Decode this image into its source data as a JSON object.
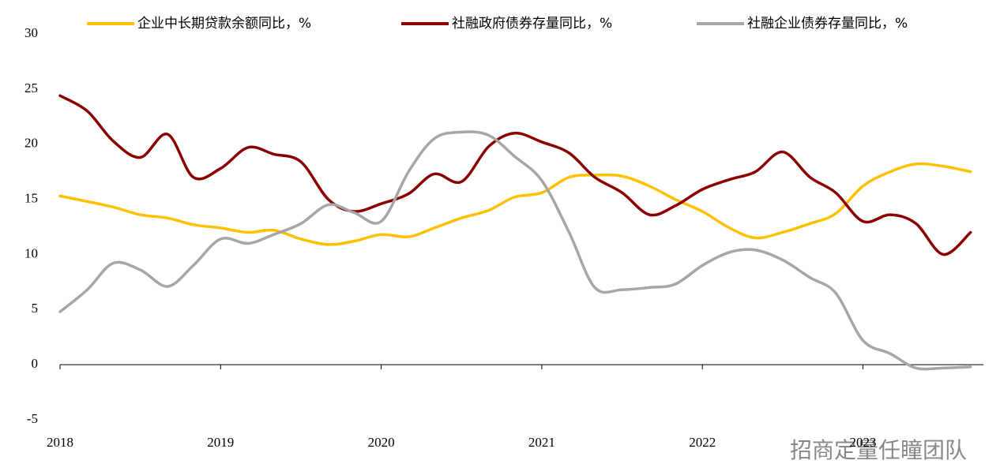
{
  "chart_data": {
    "type": "line",
    "x": [
      2018,
      2018.17,
      2018.33,
      2018.5,
      2018.67,
      2018.83,
      2019,
      2019.17,
      2019.33,
      2019.5,
      2019.67,
      2019.83,
      2020,
      2020.17,
      2020.33,
      2020.5,
      2020.67,
      2020.83,
      2021,
      2021.17,
      2021.33,
      2021.5,
      2021.67,
      2021.83,
      2022,
      2022.17,
      2022.33,
      2022.5,
      2022.67,
      2022.83,
      2023,
      2023.17,
      2023.33,
      2023.5,
      2023.67
    ],
    "series": [
      {
        "name": "企业中长期贷款余额同比，%",
        "color": "#ffc000",
        "values": [
          15.3,
          14.8,
          14.3,
          13.6,
          13.3,
          12.7,
          12.4,
          12.0,
          12.2,
          11.4,
          10.9,
          11.2,
          11.8,
          11.6,
          12.4,
          13.3,
          14.0,
          15.2,
          15.6,
          17.0,
          17.2,
          17.1,
          16.2,
          15.0,
          13.9,
          12.4,
          11.5,
          12.0,
          12.8,
          13.7,
          16.2,
          17.5,
          18.2,
          18.0,
          17.5
        ]
      },
      {
        "name": "社融政府债券存量同比，%",
        "color": "#8b0000",
        "values": [
          24.4,
          23.0,
          20.3,
          18.8,
          20.9,
          17.0,
          17.8,
          19.7,
          19.1,
          18.4,
          15.0,
          13.9,
          14.6,
          15.5,
          17.3,
          16.6,
          19.8,
          21.0,
          20.2,
          19.2,
          17.0,
          15.6,
          13.6,
          14.4,
          15.9,
          16.8,
          17.5,
          19.3,
          17.0,
          15.6,
          13.0,
          13.6,
          12.8,
          10.0,
          12.0
        ]
      },
      {
        "name": "社融企业债券存量同比，%",
        "color": "#a6a6a6",
        "values": [
          4.8,
          6.8,
          9.2,
          8.6,
          7.1,
          9.0,
          11.4,
          11.0,
          11.8,
          12.8,
          14.5,
          13.8,
          13.0,
          17.5,
          20.5,
          21.1,
          20.8,
          18.9,
          16.7,
          12.0,
          7.0,
          6.8,
          7.0,
          7.3,
          9.0,
          10.2,
          10.4,
          9.5,
          7.9,
          6.5,
          2.2,
          1.0,
          -0.3,
          -0.3,
          -0.2
        ]
      }
    ],
    "xlim": [
      2018,
      2023.75
    ],
    "xticks": [
      2018,
      2019,
      2020,
      2021,
      2022,
      2023
    ],
    "ylim": [
      -5,
      30
    ],
    "yticks": [
      -5,
      0,
      5,
      10,
      15,
      20,
      25,
      30
    ],
    "watermark": "招商定量任瞳团队"
  }
}
